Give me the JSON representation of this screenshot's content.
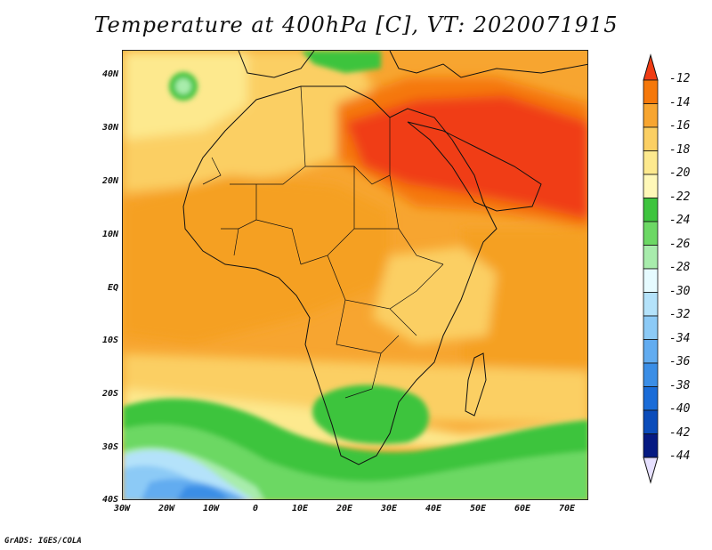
{
  "title": "Temperature at 400hPa [C], VT: 2020071915",
  "credit": "GrADS: IGES/COLA",
  "map": {
    "lat_ticks": [
      "40N",
      "30N",
      "20N",
      "10N",
      "EQ",
      "10S",
      "20S",
      "30S",
      "40S"
    ],
    "lon_ticks": [
      "30W",
      "20W",
      "10W",
      "0",
      "10E",
      "20E",
      "30E",
      "40E",
      "50E",
      "60E",
      "70E"
    ],
    "lat_range": [
      -40,
      45
    ],
    "lon_range": [
      -30,
      75
    ]
  },
  "colorbar": {
    "labels": [
      "-12",
      "-14",
      "-16",
      "-18",
      "-20",
      "-22",
      "-24",
      "-26",
      "-28",
      "-30",
      "-32",
      "-34",
      "-36",
      "-38",
      "-40",
      "-42",
      "-44"
    ],
    "colors": [
      "#f03c14",
      "#f5780a",
      "#f7a530",
      "#fbcf63",
      "#fde98e",
      "#fff8b8",
      "#3ec43e",
      "#6cd864",
      "#a8ecac",
      "#e6fbff",
      "#b4e2fa",
      "#8ccaf6",
      "#62acf0",
      "#3b8ee6",
      "#1a6cd8",
      "#0b4cba",
      "#061a82"
    ]
  }
}
